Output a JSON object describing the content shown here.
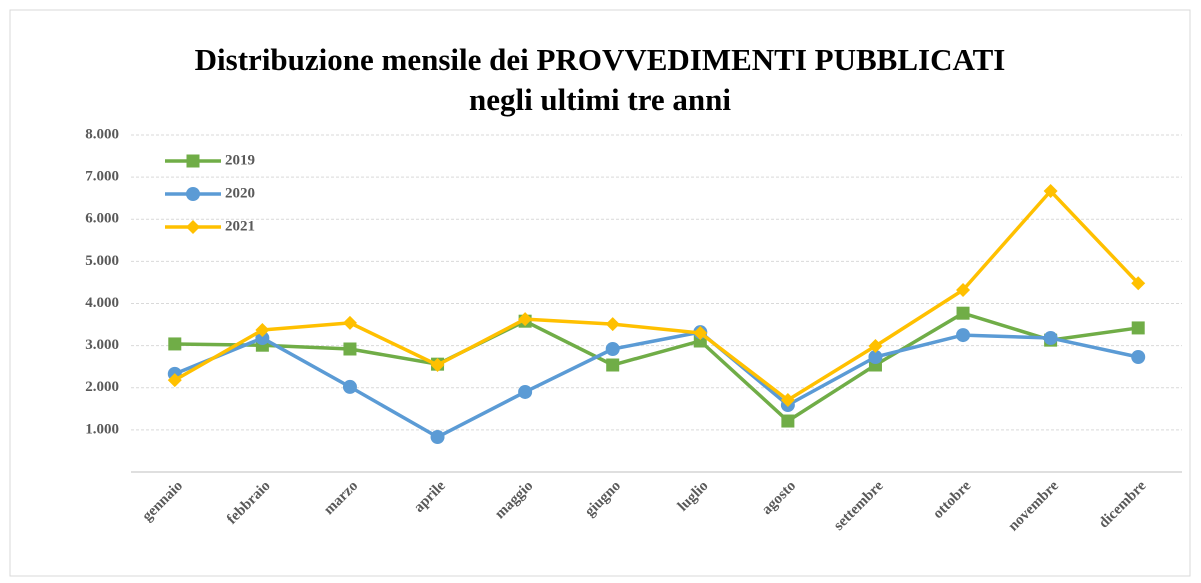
{
  "chart_data": {
    "type": "line",
    "title": [
      "Distribuzione mensile dei PROVVEDIMENTI PUBBLICATI",
      "negli ultimi tre anni"
    ],
    "categories": [
      "gennaio",
      "febbraio",
      "marzo",
      "aprile",
      "maggio",
      "giugno",
      "luglio",
      "agosto",
      "settembre",
      "ottobre",
      "novembre",
      "dicembre"
    ],
    "series": [
      {
        "name": "2019",
        "color": "#70ad47",
        "marker": "square",
        "values": [
          3040,
          3010,
          2920,
          2560,
          3580,
          2540,
          3110,
          1210,
          2540,
          3770,
          3130,
          3420
        ]
      },
      {
        "name": "2020",
        "color": "#5b9bd5",
        "marker": "circle",
        "values": [
          2330,
          3180,
          2020,
          830,
          1900,
          2920,
          3320,
          1590,
          2730,
          3250,
          3180,
          2730
        ]
      },
      {
        "name": "2021",
        "color": "#ffc000",
        "marker": "diamond",
        "values": [
          2180,
          3370,
          3540,
          2540,
          3630,
          3510,
          3300,
          1710,
          2990,
          4320,
          6670,
          4480
        ]
      }
    ],
    "ylim": [
      0,
      8000
    ],
    "yticks": [
      {
        "value": 1000,
        "label": "1.000"
      },
      {
        "value": 2000,
        "label": "2.000"
      },
      {
        "value": 3000,
        "label": "3.000"
      },
      {
        "value": 4000,
        "label": "4.000"
      },
      {
        "value": 5000,
        "label": "5.000"
      },
      {
        "value": 6000,
        "label": "6.000"
      },
      {
        "value": 7000,
        "label": "7.000"
      },
      {
        "value": 8000,
        "label": "8.000"
      }
    ],
    "grid": true,
    "legend": "upper left"
  }
}
